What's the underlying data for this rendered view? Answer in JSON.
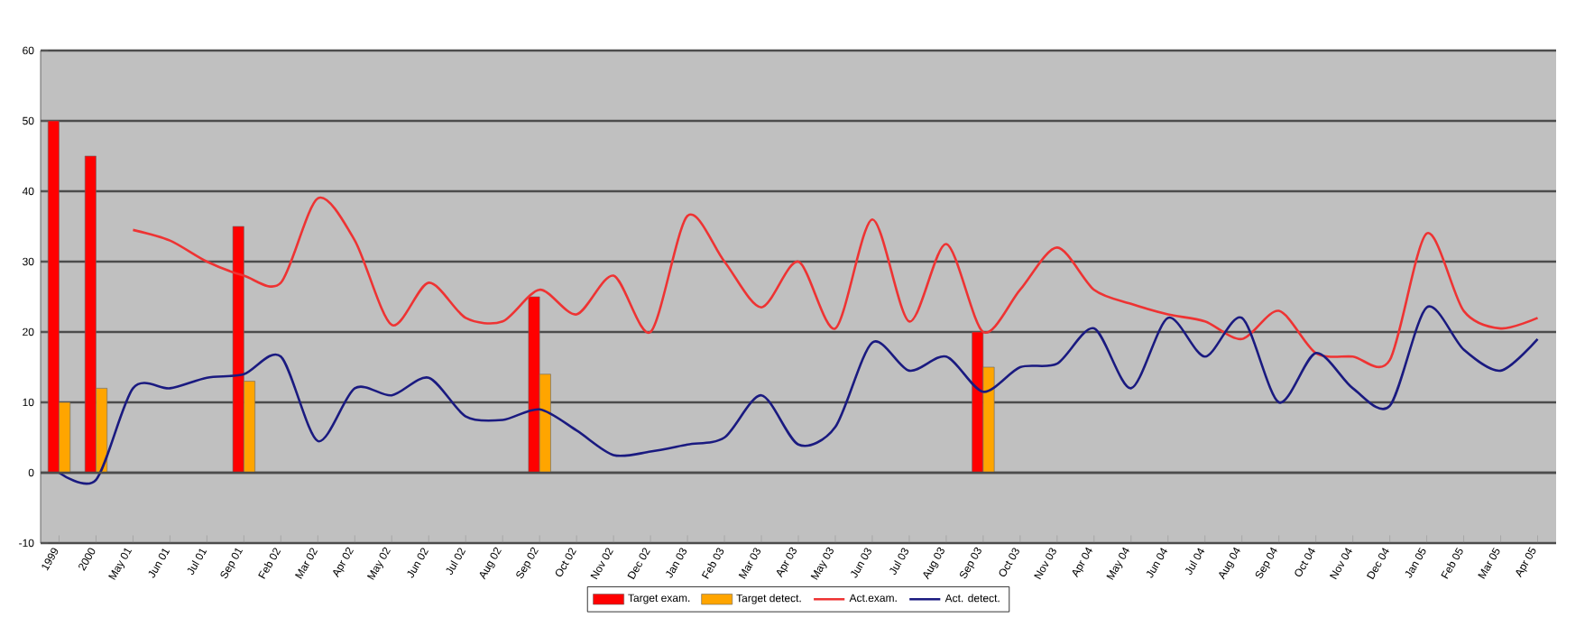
{
  "chart_data": {
    "type": "bar",
    "categories": [
      "1999",
      "2000",
      "May 01",
      "Jun 01",
      "Jul 01",
      "Sep 01",
      "Feb 02",
      "Mar 02",
      "Apr 02",
      "May 02",
      "Jun 02",
      "Jul 02",
      "Aug 02",
      "Sep 02",
      "Oct 02",
      "Nov 02",
      "Dec 02",
      "Jan 03",
      "Feb 03",
      "Mar 03",
      "Apr 03",
      "May 03",
      "Jun 03",
      "Jul 03",
      "Aug 03",
      "Sep 03",
      "Oct 03",
      "Nov 03",
      "Apr 04",
      "May 04",
      "Jun 04",
      "Jul 04",
      "Aug 04",
      "Sep 04",
      "Oct 04",
      "Nov 04",
      "Dec 04",
      "Jan 05",
      "Feb 05",
      "Mar 05",
      "Apr 05"
    ],
    "series": [
      {
        "name": "Target exam.",
        "color": "#ff0000",
        "values": [
          50,
          45,
          null,
          null,
          null,
          35,
          null,
          null,
          null,
          null,
          null,
          null,
          null,
          25,
          null,
          null,
          null,
          null,
          null,
          null,
          null,
          null,
          null,
          null,
          null,
          20,
          null,
          null,
          null,
          null,
          null,
          null,
          null,
          null,
          null,
          null,
          null,
          null,
          null,
          null,
          null
        ]
      },
      {
        "name": "Target detect.",
        "color": "#ffa500",
        "values": [
          10,
          12,
          null,
          null,
          null,
          13,
          null,
          null,
          null,
          null,
          null,
          null,
          null,
          14,
          null,
          null,
          null,
          null,
          null,
          null,
          null,
          null,
          null,
          null,
          null,
          15,
          null,
          null,
          null,
          null,
          null,
          null,
          null,
          null,
          null,
          null,
          null,
          null,
          null,
          null,
          null
        ]
      },
      {
        "name": "Act.exam.",
        "type": "line",
        "color": "#ee3333",
        "values": [
          null,
          null,
          34.5,
          33,
          30,
          28,
          27,
          39,
          33,
          21,
          27,
          22,
          21.5,
          26,
          22.5,
          28,
          20,
          36.5,
          30,
          23.5,
          30,
          20.5,
          36,
          21.5,
          32.5,
          20,
          26,
          32,
          26,
          24,
          22.5,
          21.5,
          19,
          23,
          17,
          16.5,
          16,
          34,
          23,
          20.5,
          22
        ]
      },
      {
        "name": "Act. detect.",
        "type": "line",
        "color": "#1a1a80",
        "values": [
          0,
          -1,
          12,
          12,
          13.5,
          14,
          16.5,
          4.5,
          12,
          11,
          13.5,
          8,
          7.5,
          9,
          6,
          2.5,
          3,
          4,
          5,
          11,
          4,
          6.5,
          18.5,
          14.5,
          16.5,
          11.5,
          15,
          15.5,
          20.5,
          12,
          22,
          16.5,
          22,
          10,
          17,
          12,
          9.5,
          23.5,
          17.5,
          14.5,
          19
        ]
      }
    ],
    "ylim": [
      -10,
      60
    ],
    "yticks": [
      -10,
      0,
      10,
      20,
      30,
      40,
      50,
      60
    ],
    "grid": "y",
    "legend": "bottom",
    "marker": "none",
    "line_style": "solid"
  }
}
